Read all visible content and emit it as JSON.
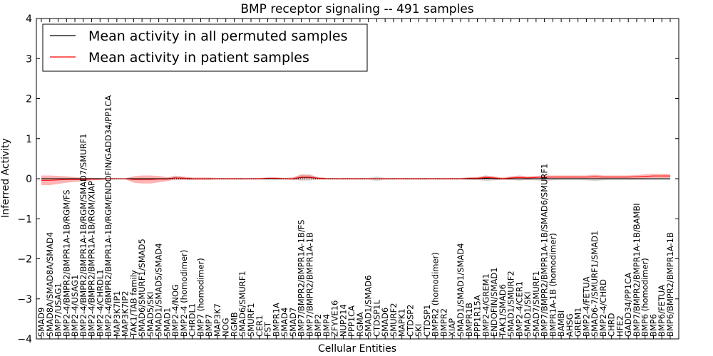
{
  "chart_data": {
    "type": "line",
    "title": "BMP receptor signaling -- 491 samples",
    "xlabel": "Cellular Entities",
    "ylabel": "Inferred Activity",
    "ylim": [
      -4,
      4
    ],
    "yticks": [
      -4,
      -3,
      -2,
      -1,
      0,
      1,
      2,
      3,
      4
    ],
    "legend_position": "top-left",
    "colors": {
      "permuted": "#000000",
      "patient": "#ff0000",
      "permuted_band": "#b0b0b0",
      "patient_band": "#ff7777"
    },
    "legend": [
      "Mean activity in all permuted samples",
      "Mean activity in patient samples"
    ],
    "categories": [
      "SMAD9",
      "SMAD8A/SMAD8A/SMAD4",
      "BMP7/USAG1",
      "BMP2-4/BMPR2/BMPR1A-1B/RGM/FS",
      "BMP2-4/USAG1",
      "BMP2-4/BMPR2/BMPR1A-1B/RGM/SMAD7/SMURF1",
      "BMP2-4/BMPR2/BMPR1A-1B/RGM/XIAP",
      "BMP2-4/CHRDL1",
      "BMP2-4/BMPR2/BMPR1A-1B/RGM/ENDOFIN/GADD34/PP1CA",
      "MAP3K7IP1",
      "MAP3K7IP2",
      "TAK1/TAB family",
      "SMAD6/SMURF1/SMAD5",
      "SMAD5/SKI",
      "SMAD1/SMAD5/SMAD4",
      "SMAD1",
      "BMP2-4/NOG",
      "BMP2-4 (homodimer)",
      "CHRDL1",
      "BMP7 (homodimer)",
      "BMP7",
      "MAP3K7",
      "NOG",
      "RGMB",
      "SMAD6/SMURF1",
      "SMURF1",
      "CER1",
      "FST",
      "BMPR1A",
      "SMAD4",
      "SMAD7",
      "BMP7/BMPR2/BMPR1A-1B/FS",
      "BMP7/BMPR2/BMPR1A-1B",
      "BMP2",
      "BMP4",
      "ZFYVE16",
      "NUP214",
      "PPP1CA",
      "RGMA",
      "SMAD1/SMAD6",
      "CTDSP1L",
      "SMAD6",
      "SMURF2",
      "MAPK1",
      "CTDSP2",
      "SKI",
      "CTDSP1",
      "BMPR2 (homodimer)",
      "BMPR2",
      "XIAP",
      "SMAD1/SMAD1/SMAD4",
      "BMPR1B",
      "PPP1R15A",
      "BMP2-4/GREM1",
      "ENDOFIN/SMAD1",
      "TAK1/SMAD6",
      "SMAD1/SMURF2",
      "BMP2-4/CER1",
      "SMAD1/SKI",
      "SMAD7/SMURF1",
      "BMP7/BMPR2/BMPR1A-1B/SMAD6/SMURF1",
      "BMPR1A-1B (homodimer)",
      "BAMBI",
      "AHSG",
      "GREM1",
      "BMP2-4/FETUA",
      "SMAD6-7/SMURF1/SMAD1",
      "BMP2-4/CHRD",
      "CHRD",
      "HFE2",
      "GADD34/PP1CA",
      "BMP7/BMPR2/BMPR1A-1B/BAMBI",
      "BMP6 (homodimer)",
      "BMP6",
      "BMP6/FETUA",
      "BMP6/BMPR2/BMPR1A-1B"
    ],
    "series": [
      {
        "name": "Mean activity in all permuted samples",
        "values": [
          0,
          0,
          0,
          0,
          0,
          0,
          0,
          0,
          0,
          0,
          0,
          0,
          0,
          0,
          0,
          0,
          0.02,
          0.01,
          0,
          0,
          0,
          0,
          0,
          0,
          0,
          0,
          0,
          0,
          0,
          0,
          0,
          0.03,
          0.03,
          0.01,
          0,
          0,
          0,
          0,
          0,
          0,
          0,
          0,
          0,
          0,
          0,
          0,
          0,
          0,
          0,
          0,
          0,
          0,
          0,
          0.01,
          0,
          0,
          0,
          0,
          0,
          0,
          0,
          0,
          0,
          0,
          0,
          0,
          0,
          0,
          0,
          0,
          0,
          0,
          0,
          0,
          0,
          0
        ],
        "band": [
          0.02,
          0.02,
          0.02,
          0.02,
          0.02,
          0.02,
          0.02,
          0.02,
          0.02,
          0.02,
          0.02,
          0.02,
          0.02,
          0.02,
          0.02,
          0.02,
          0.06,
          0.04,
          0.02,
          0.02,
          0.02,
          0.02,
          0.02,
          0.02,
          0.02,
          0.02,
          0.02,
          0.02,
          0.02,
          0.02,
          0.03,
          0.08,
          0.08,
          0.03,
          0.02,
          0.02,
          0.02,
          0.02,
          0.02,
          0.02,
          0.06,
          0.02,
          0.02,
          0.02,
          0.02,
          0.02,
          0.02,
          0.02,
          0.02,
          0.02,
          0.02,
          0.03,
          0.03,
          0.07,
          0.04,
          0.02,
          0.03,
          0.05,
          0.03,
          0.04,
          0.06,
          0.04,
          0.03,
          0.03,
          0.03,
          0.04,
          0.06,
          0.04,
          0.03,
          0.03,
          0.03,
          0.03,
          0.03,
          0.03,
          0.03,
          0.03
        ]
      },
      {
        "name": "Mean activity in patient samples",
        "values": [
          -0.04,
          -0.04,
          -0.03,
          -0.02,
          -0.02,
          -0.02,
          -0.01,
          -0.01,
          0,
          0,
          0,
          -0.02,
          -0.02,
          -0.02,
          -0.01,
          -0.01,
          0.02,
          0.01,
          0,
          0,
          0,
          0,
          0,
          0,
          0,
          0,
          0,
          0.01,
          0.01,
          0,
          0,
          0.04,
          0.04,
          0.01,
          0,
          0,
          0,
          0,
          0,
          0,
          0,
          0,
          0,
          0,
          0,
          0,
          0,
          0,
          0,
          0,
          0,
          0.01,
          0.01,
          0.03,
          0.02,
          0,
          0.02,
          0.03,
          0.02,
          0.03,
          0.04,
          0.04,
          0.04,
          0.04,
          0.04,
          0.04,
          0.05,
          0.04,
          0.04,
          0.04,
          0.04,
          0.05,
          0.06,
          0.07,
          0.07,
          0.07
        ],
        "band": [
          0.12,
          0.12,
          0.1,
          0.08,
          0.06,
          0.04,
          0.03,
          0.02,
          0.01,
          0.01,
          0.01,
          0.08,
          0.1,
          0.1,
          0.08,
          0.05,
          0.04,
          0.04,
          0.03,
          0.03,
          0.03,
          0.02,
          0.02,
          0.02,
          0.02,
          0.02,
          0.02,
          0.02,
          0.02,
          0.02,
          0.03,
          0.06,
          0.05,
          0.03,
          0.02,
          0.02,
          0.02,
          0.02,
          0.02,
          0.02,
          0.02,
          0.02,
          0.02,
          0.02,
          0.02,
          0.02,
          0.02,
          0.02,
          0.02,
          0.02,
          0.02,
          0.02,
          0.03,
          0.05,
          0.04,
          0.03,
          0.04,
          0.05,
          0.04,
          0.04,
          0.04,
          0.04,
          0.04,
          0.04,
          0.04,
          0.04,
          0.05,
          0.04,
          0.04,
          0.04,
          0.04,
          0.04,
          0.05,
          0.05,
          0.05,
          0.05
        ]
      }
    ]
  }
}
